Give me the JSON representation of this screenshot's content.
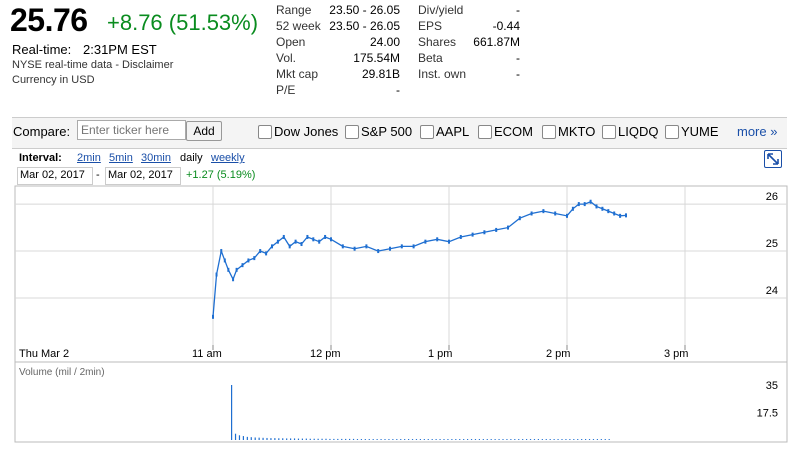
{
  "quote": {
    "price": "25.76",
    "change": "+8.76 (51.53%)",
    "realtime_label": "Real-time:",
    "realtime_time": "2:31PM EST",
    "source": "NYSE real-time data - Disclaimer",
    "currency": "Currency in USD"
  },
  "stats": [
    {
      "label": "Range",
      "value": "23.50 - 26.05"
    },
    {
      "label": "52 week",
      "value": "23.50 - 26.05"
    },
    {
      "label": "Open",
      "value": "24.00"
    },
    {
      "label": "Vol.",
      "value": "175.54M"
    },
    {
      "label": "Mkt cap",
      "value": "29.81B"
    },
    {
      "label": "P/E",
      "value": "-"
    },
    {
      "label": "Div/yield",
      "value": "-"
    },
    {
      "label": "EPS",
      "value": "-0.44"
    },
    {
      "label": "Shares",
      "value": "661.87M"
    },
    {
      "label": "Beta",
      "value": "-"
    },
    {
      "label": "Inst. own",
      "value": "-"
    }
  ],
  "compare": {
    "label": "Compare:",
    "placeholder": "Enter ticker here",
    "add_label": "Add",
    "tickers": [
      "Dow Jones",
      "S&P 500",
      "AAPL",
      "ECOM",
      "MKTO",
      "LIQDQ",
      "YUME"
    ],
    "more_label": "more »"
  },
  "interval": {
    "label": "Interval:",
    "options": [
      "2min",
      "5min",
      "30min",
      "daily",
      "weekly"
    ],
    "selected": "2min"
  },
  "date_range": {
    "from": "Mar 02, 2017",
    "separator": "-",
    "to": "Mar 02, 2017",
    "change": "+1.27 (5.19%)"
  },
  "chart_data": {
    "type": "line",
    "x_ticks": [
      "Thu Mar 2",
      "11 am",
      "12 pm",
      "1 pm",
      "2 pm",
      "3 pm"
    ],
    "y_ticks": [
      24,
      25,
      26
    ],
    "ylim": [
      23.0,
      26.3
    ],
    "x_hours_range": [
      10.0,
      16.0
    ],
    "series": [
      {
        "x": [
          11.0,
          11.03,
          11.07,
          11.1,
          11.13,
          11.17,
          11.2,
          11.25,
          11.3,
          11.35,
          11.4,
          11.45,
          11.5,
          11.55,
          11.6,
          11.65,
          11.7,
          11.75,
          11.8,
          11.85,
          11.9,
          11.95,
          12.0,
          12.1,
          12.2,
          12.3,
          12.4,
          12.5,
          12.6,
          12.7,
          12.8,
          12.9,
          13.0,
          13.1,
          13.2,
          13.3,
          13.4,
          13.5,
          13.6,
          13.7,
          13.8,
          13.9,
          14.0,
          14.05,
          14.1,
          14.15,
          14.2,
          14.25,
          14.3,
          14.35,
          14.4,
          14.45,
          14.5
        ],
        "values": [
          23.6,
          24.5,
          25.0,
          24.8,
          24.6,
          24.4,
          24.6,
          24.7,
          24.8,
          24.85,
          25.0,
          24.95,
          25.1,
          25.2,
          25.3,
          25.1,
          25.2,
          25.15,
          25.3,
          25.25,
          25.2,
          25.3,
          25.25,
          25.1,
          25.05,
          25.1,
          25.0,
          25.05,
          25.1,
          25.1,
          25.2,
          25.25,
          25.2,
          25.3,
          25.35,
          25.4,
          25.45,
          25.5,
          25.7,
          25.8,
          25.85,
          25.8,
          25.75,
          25.9,
          26.0,
          26.0,
          26.05,
          25.95,
          25.9,
          25.85,
          25.8,
          25.75,
          25.76
        ]
      }
    ],
    "volume": {
      "label": "Volume (mil / 2min)",
      "y_ticks": [
        "35",
        "17.5"
      ],
      "ylim": [
        0,
        35
      ],
      "values": [
        35,
        4,
        3,
        2.5,
        2,
        1.8,
        1.6,
        1.5,
        1.4,
        1.3,
        1.2,
        1.2,
        1.1,
        1.1,
        1.0,
        1.0,
        1.0,
        0.9,
        0.9,
        0.9,
        0.8,
        0.8,
        0.8,
        0.8,
        0.8,
        0.7,
        0.7,
        0.7,
        0.7,
        0.7,
        0.7,
        0.7,
        0.6,
        0.6,
        0.6,
        0.6,
        0.6,
        0.6,
        0.6,
        0.6,
        0.6,
        0.6,
        0.6,
        0.6,
        0.6,
        0.6,
        0.6,
        0.6,
        0.6,
        0.6,
        0.6,
        0.6,
        0.6,
        0.6,
        0.6,
        0.6,
        0.6,
        0.6,
        0.6,
        0.6,
        0.6,
        0.6,
        0.6,
        0.6,
        0.6,
        0.6,
        0.6,
        0.6,
        0.6,
        0.6,
        0.6,
        0.6,
        0.6,
        0.6,
        0.6,
        0.6,
        0.6,
        0.6,
        0.6,
        0.6,
        0.6,
        0.6,
        0.6,
        0.6,
        0.6,
        0.6,
        0.6,
        0.6,
        0.6,
        0.6,
        0.6,
        0.6,
        0.6,
        0.6,
        0.6,
        0.6,
        0.6,
        0.6,
        0.6,
        0.6,
        0.6,
        0.6,
        0.6,
        0.6,
        0.6,
        0.6,
        0.6,
        0.6,
        0.6,
        0.6,
        0.6,
        0.6,
        0.6
      ]
    },
    "colors": {
      "line": "#1f6fd1",
      "grid": "#d8d8d8",
      "up": "#0a8c1f",
      "link": "#1a4fa8"
    },
    "grid": true
  }
}
